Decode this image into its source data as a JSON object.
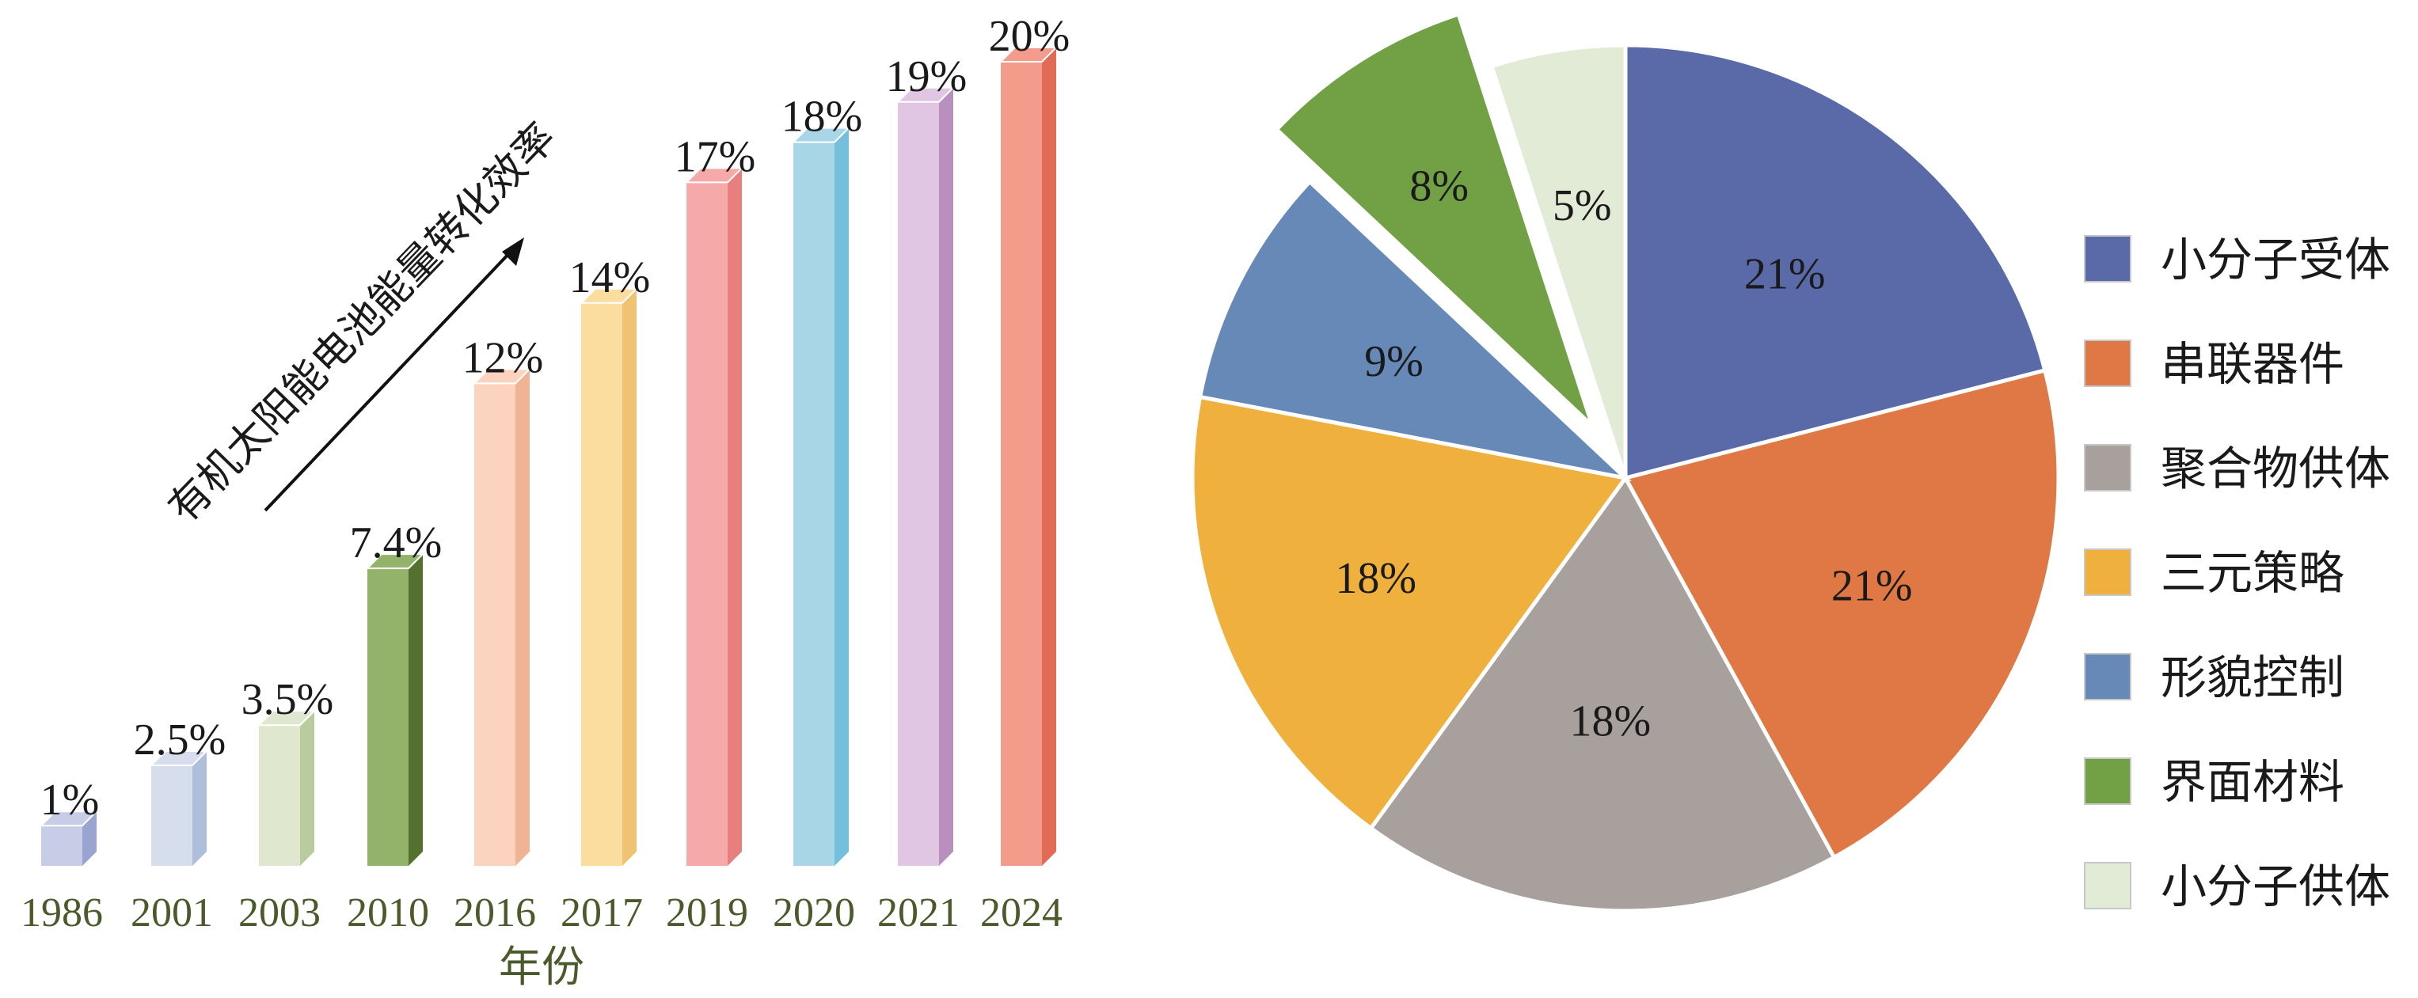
{
  "chart_data": [
    {
      "type": "bar",
      "xlabel": "年份",
      "ylabel": "",
      "trend_label": "有机太阳能电池能量转化效率",
      "categories": [
        "1986",
        "2001",
        "2003",
        "2010",
        "2016",
        "2017",
        "2019",
        "2020",
        "2021",
        "2024"
      ],
      "values": [
        1,
        2.5,
        3.5,
        7.4,
        12,
        14,
        17,
        18,
        19,
        20
      ],
      "value_labels": [
        "1%",
        "2.5%",
        "3.5%",
        "7.4%",
        "12%",
        "14%",
        "17%",
        "18%",
        "19%",
        "20%"
      ],
      "colors": [
        "#c7cde6",
        "#d6deee",
        "#dfe8cf",
        "#93b36b",
        "#fbd3bf",
        "#fbdda0",
        "#f5a9a9",
        "#a9d6e6",
        "#e1c6e3",
        "#f39c8b"
      ],
      "side_colors": [
        "#9aa4cf",
        "#aebfdc",
        "#b9cc9e",
        "#55712f",
        "#f0b393",
        "#f0c372",
        "#e87e7e",
        "#74bfdc",
        "#b98fc0",
        "#e26b55"
      ],
      "ylim": [
        0,
        20
      ],
      "grid": false
    },
    {
      "type": "pie",
      "labels": [
        "小分子受体",
        "串联器件",
        "聚合物供体",
        "三元策略",
        "形貌控制",
        "界面材料",
        "小分子供体"
      ],
      "values": [
        21,
        21,
        18,
        18,
        9,
        8,
        5
      ],
      "value_labels": [
        "21%",
        "21%",
        "18%",
        "18%",
        "9%",
        "8%",
        "5%"
      ],
      "colors": [
        "#5a6aa8",
        "#df7845",
        "#a7a09c",
        "#f0b03e",
        "#6689b8",
        "#72a045",
        "#e2ebd5"
      ],
      "exploded": [
        "界面材料"
      ],
      "legend": "right"
    }
  ]
}
